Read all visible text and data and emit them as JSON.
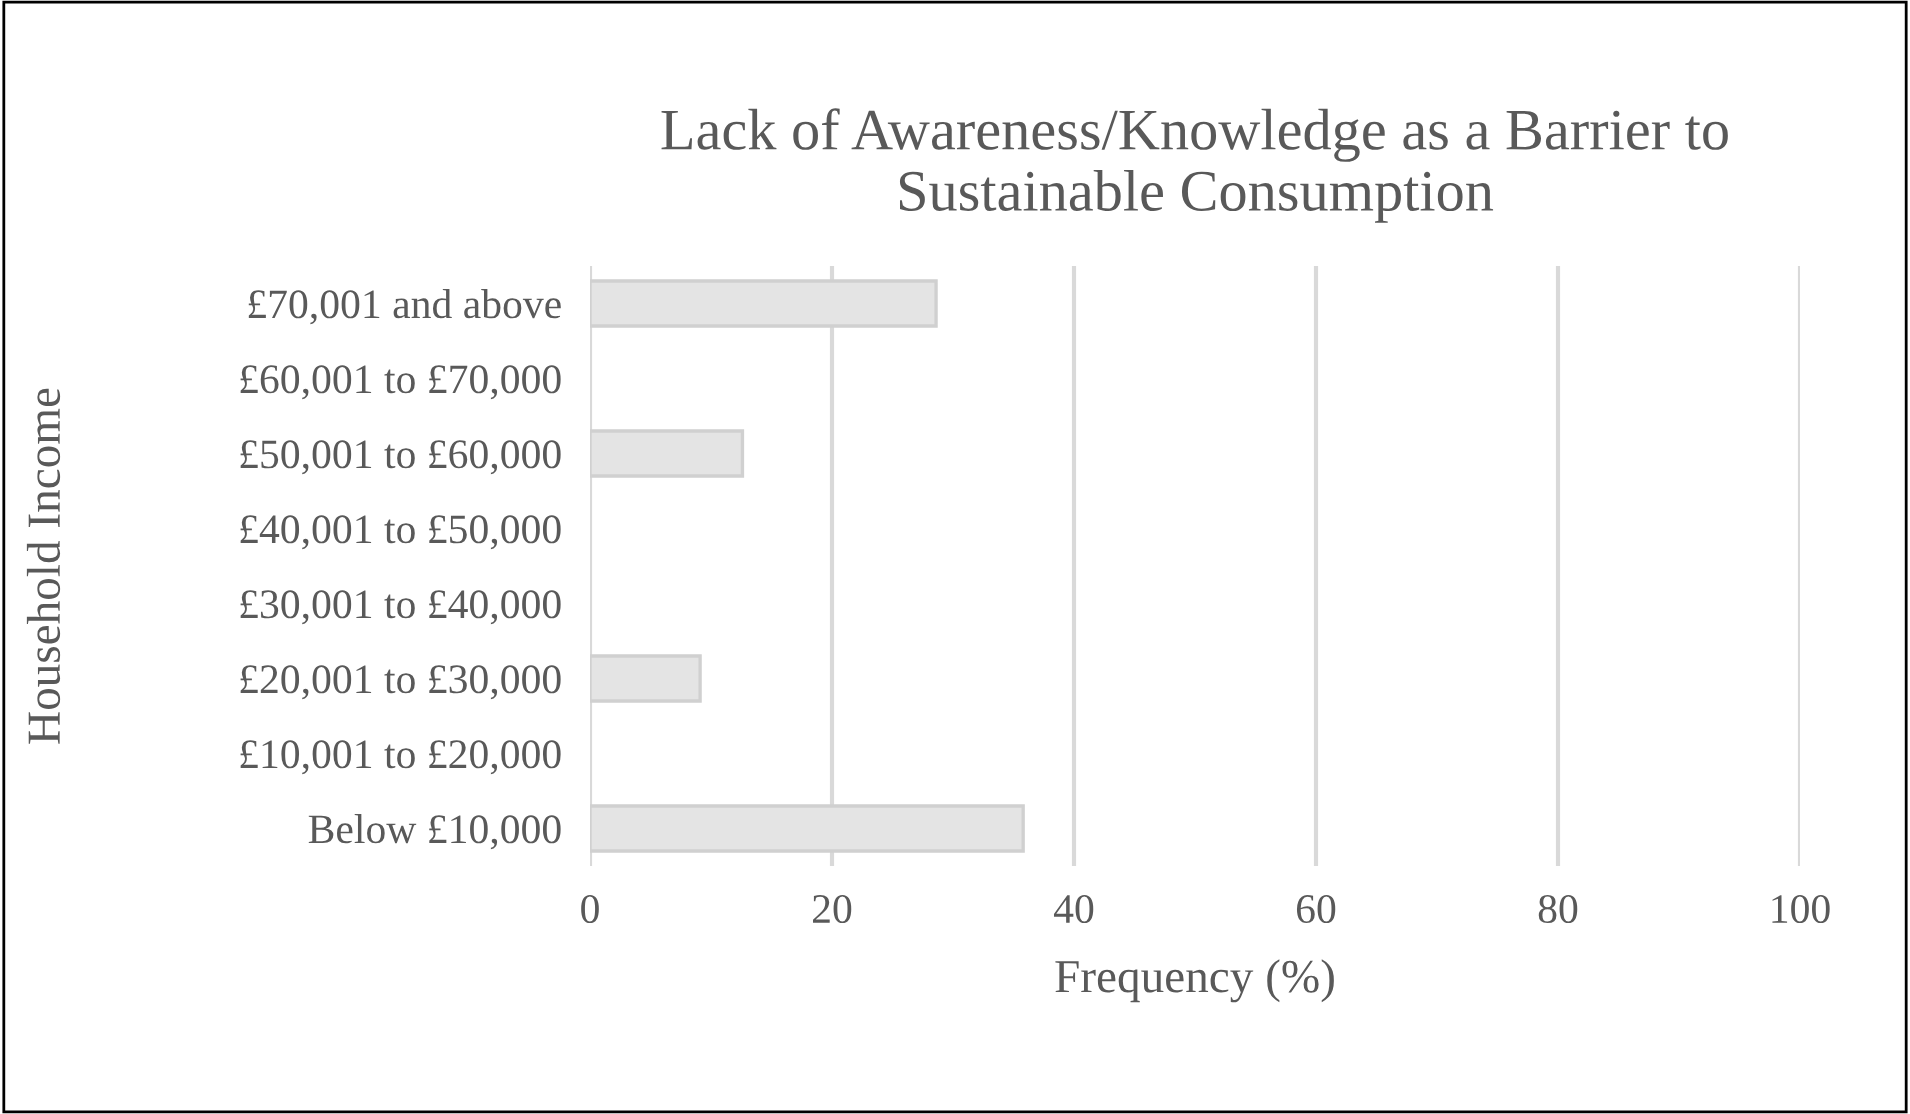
{
  "chart_data": {
    "type": "bar",
    "orientation": "horizontal",
    "title": "Lack of Awareness/Knowledge as a Barrier to\nSustainable Consumption",
    "xlabel": "Frequency (%)",
    "ylabel": "Household Income",
    "categories": [
      "£70,001 and above",
      "£60,001 to £70,000",
      "£50,001 to £60,000",
      "£40,001 to £50,000",
      "£30,001 to £40,000",
      "£20,001 to £30,000",
      "£10,001 to £20,000",
      "Below £10,000"
    ],
    "values": [
      28.6,
      null,
      12.6,
      null,
      null,
      9.1,
      null,
      35.8
    ],
    "color": "#e4e4e4",
    "xlim": [
      0,
      100
    ],
    "xticks": [
      0,
      20,
      40,
      60,
      80,
      100
    ],
    "grid": "x",
    "legend": false
  }
}
